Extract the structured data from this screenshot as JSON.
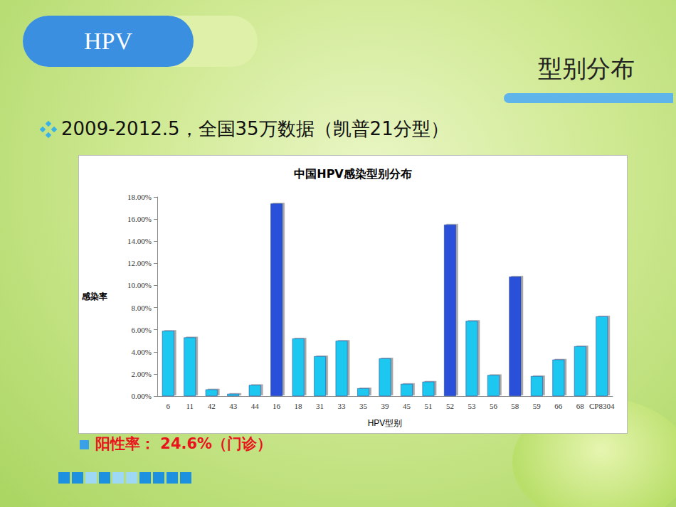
{
  "slide": {
    "tag": "HPV",
    "heading": "型别分布",
    "bullet": "2009-2012.5，全国35万数据（凯普21分型）",
    "note": "阳性率： 24.6%（门诊）"
  },
  "chart_data": {
    "type": "bar",
    "title": "中国HPV感染型别分布",
    "x_label": "HPV型别",
    "y_label": "感染率",
    "categories": [
      "6",
      "11",
      "42",
      "43",
      "44",
      "16",
      "18",
      "31",
      "33",
      "35",
      "39",
      "45",
      "51",
      "52",
      "53",
      "56",
      "58",
      "59",
      "66",
      "68",
      "CP8304"
    ],
    "values": [
      5.9,
      5.3,
      0.6,
      0.2,
      1.0,
      17.4,
      5.2,
      3.6,
      5.0,
      0.7,
      3.4,
      1.1,
      1.3,
      15.5,
      6.8,
      1.9,
      10.8,
      1.8,
      3.3,
      4.5,
      7.2
    ],
    "colors": [
      "#1ec8f0",
      "#1ec8f0",
      "#1ec8f0",
      "#1ec8f0",
      "#1ec8f0",
      "#2b4fd8",
      "#1ec8f0",
      "#1ec8f0",
      "#1ec8f0",
      "#1ec8f0",
      "#1ec8f0",
      "#1ec8f0",
      "#1ec8f0",
      "#2b4fd8",
      "#1ec8f0",
      "#1ec8f0",
      "#2b4fd8",
      "#1ec8f0",
      "#1ec8f0",
      "#1ec8f0",
      "#1ec8f0"
    ],
    "ylim": [
      0,
      18
    ],
    "yticks": [
      {
        "value": 0,
        "label": "0.00%"
      },
      {
        "value": 2,
        "label": "2.00%"
      },
      {
        "value": 4,
        "label": "4.00%"
      },
      {
        "value": 6,
        "label": "6.00%"
      },
      {
        "value": 8,
        "label": "8.00%"
      },
      {
        "value": 10,
        "label": "10.00%"
      },
      {
        "value": 12,
        "label": "12.00%"
      },
      {
        "value": 14,
        "label": "14.00%"
      },
      {
        "value": 16,
        "label": "16.00%"
      },
      {
        "value": 18,
        "label": "18.00%"
      }
    ],
    "grid": false
  }
}
